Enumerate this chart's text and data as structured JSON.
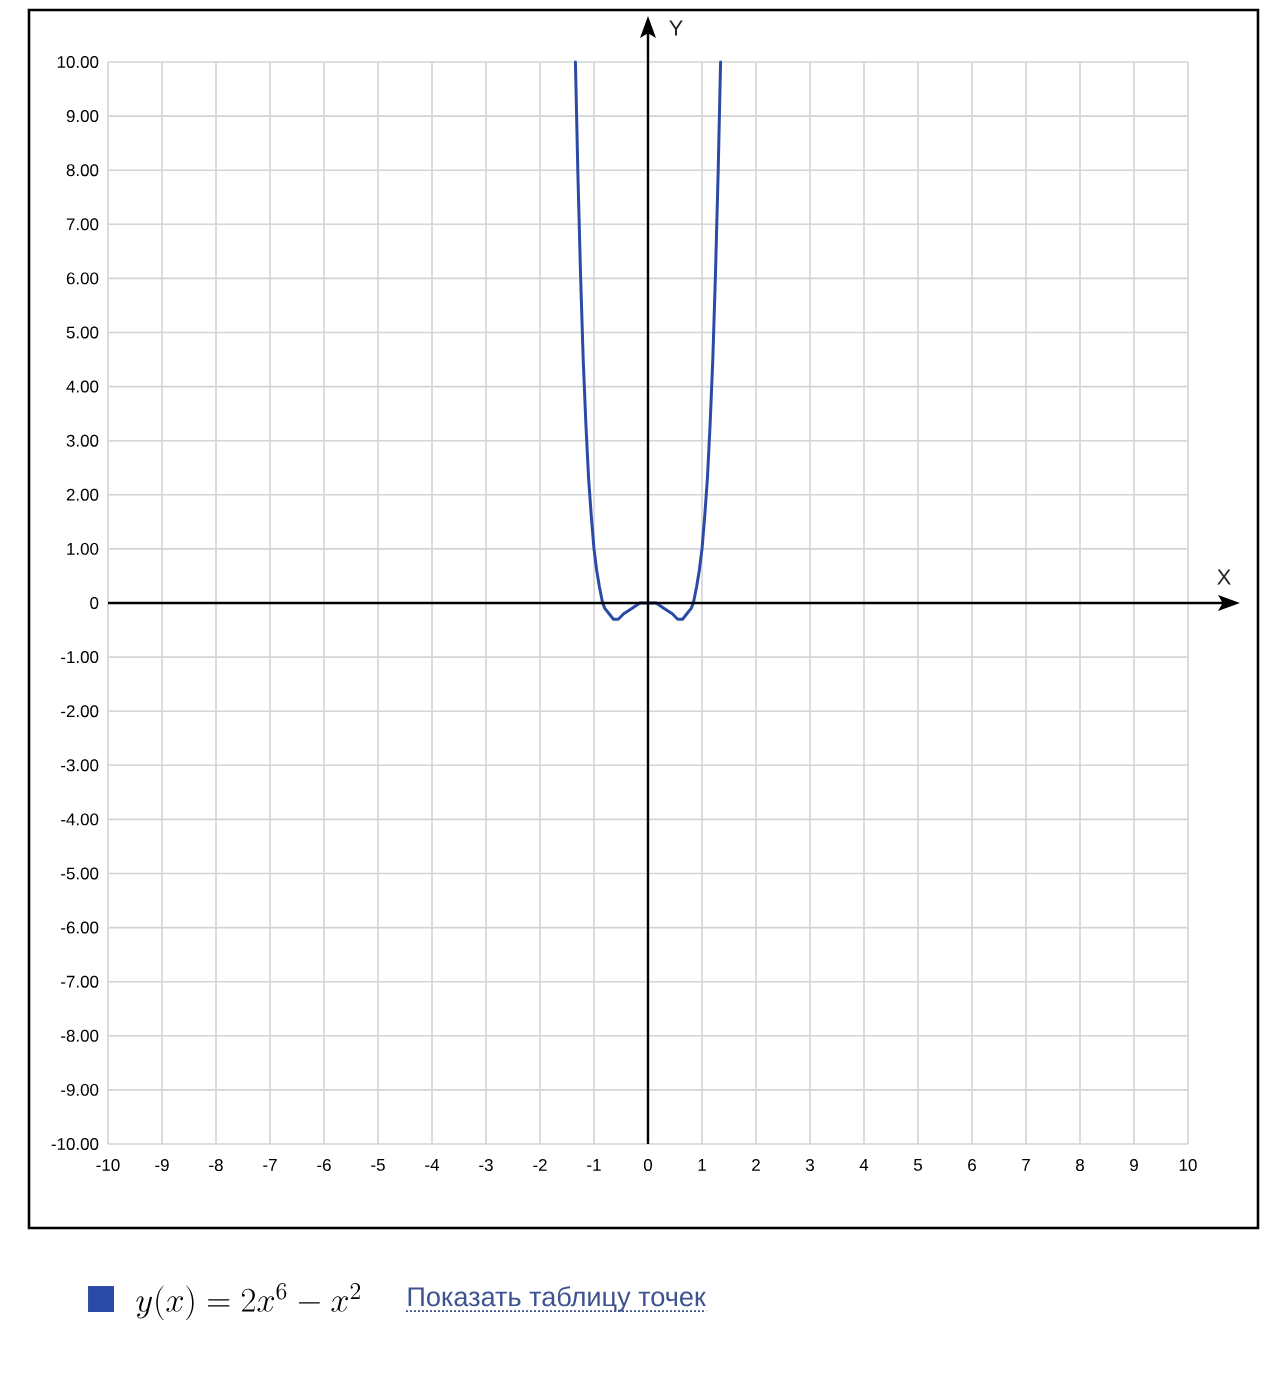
{
  "chart_data": {
    "type": "line",
    "xlabel": "X",
    "ylabel": "Y",
    "xlim": [
      -10,
      10
    ],
    "ylim": [
      -10,
      10
    ],
    "xticks": [
      -10,
      -9,
      -8,
      -7,
      -6,
      -5,
      -4,
      -3,
      -2,
      -1,
      0,
      1,
      2,
      3,
      4,
      5,
      6,
      7,
      8,
      9,
      10
    ],
    "yticks": [
      {
        "value": -10,
        "label": "-10.00"
      },
      {
        "value": -9,
        "label": "-9.00"
      },
      {
        "value": -8,
        "label": "-8.00"
      },
      {
        "value": -7,
        "label": "-7.00"
      },
      {
        "value": -6,
        "label": "-6.00"
      },
      {
        "value": -5,
        "label": "-5.00"
      },
      {
        "value": -4,
        "label": "-4.00"
      },
      {
        "value": -3,
        "label": "-3.00"
      },
      {
        "value": -2,
        "label": "-2.00"
      },
      {
        "value": -1,
        "label": "-1.00"
      },
      0,
      {
        "value": 1,
        "label": "1.00"
      },
      {
        "value": 2,
        "label": "2.00"
      },
      {
        "value": 3,
        "label": "3.00"
      },
      {
        "value": 4,
        "label": "4.00"
      },
      {
        "value": 5,
        "label": "5.00"
      },
      {
        "value": 6,
        "label": "6.00"
      },
      {
        "value": 7,
        "label": "7.00"
      },
      {
        "value": 8,
        "label": "8.00"
      },
      {
        "value": 9,
        "label": "9.00"
      },
      {
        "value": 10,
        "label": "10.00"
      }
    ],
    "grid": true,
    "legend": "bottom",
    "series": [
      {
        "name": "y(x) = 2x^{6} - x^{2}",
        "color": "#2b4aa5",
        "x": [
          -1.344,
          -1.3,
          -1.25,
          -1.2,
          -1.15,
          -1.1,
          -1.05,
          -1.0,
          -0.95,
          -0.9,
          -0.84,
          -0.8,
          -0.72,
          -0.64,
          -0.55,
          -0.45,
          -0.3,
          -0.15,
          0,
          0.15,
          0.3,
          0.45,
          0.55,
          0.64,
          0.72,
          0.8,
          0.84,
          0.9,
          0.95,
          1.0,
          1.05,
          1.1,
          1.15,
          1.2,
          1.25,
          1.3,
          1.344
        ],
        "values": [
          10.0,
          8.0,
          6.1,
          4.5,
          3.3,
          2.3,
          1.6,
          1.0,
          0.6,
          0.3,
          0.0,
          -0.1,
          -0.2,
          -0.3,
          -0.3,
          -0.2,
          -0.1,
          0.0,
          0.0,
          0.0,
          -0.1,
          -0.2,
          -0.3,
          -0.3,
          -0.2,
          -0.1,
          0.0,
          0.3,
          0.6,
          1.0,
          1.6,
          2.3,
          3.3,
          4.5,
          6.1,
          8.0,
          10.0
        ]
      }
    ],
    "annotations": [
      "Показать таблицу точек"
    ]
  }
}
